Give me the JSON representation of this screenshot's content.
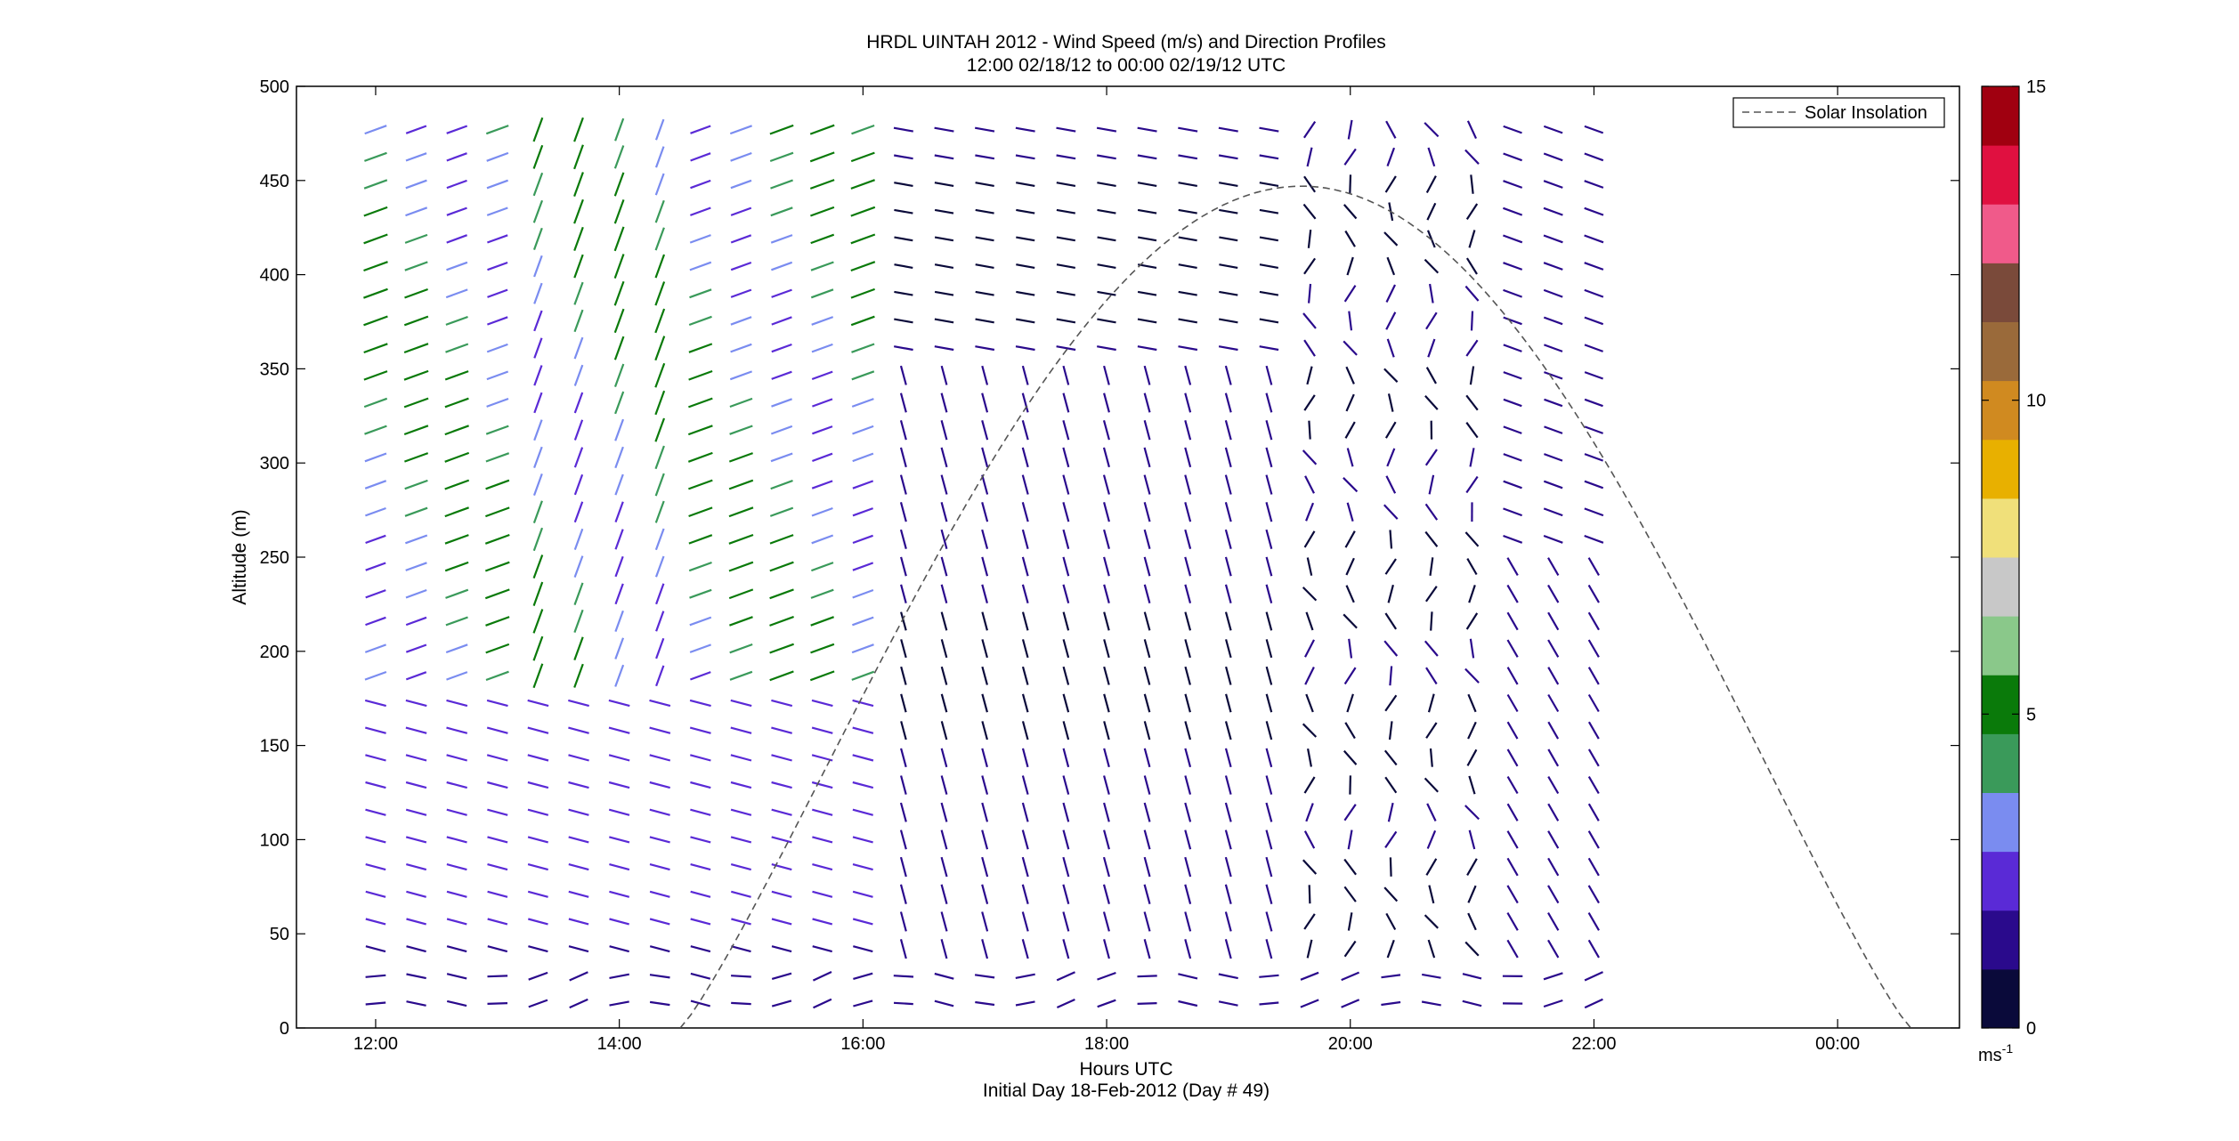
{
  "chart_data": {
    "type": "quiver",
    "title": "HRDL UINTAH 2012 - Wind Speed (m/s) and Direction Profiles",
    "subtitle": "12:00 02/18/12 to 00:00 02/19/12  UTC",
    "xlabel": "Hours UTC",
    "xlabel2": "Initial Day 18-Feb-2012 (Day # 49)",
    "ylabel": "Altitude (m)",
    "x_ticks": [
      "12:00",
      "14:00",
      "16:00",
      "18:00",
      "20:00",
      "22:00",
      "00:00"
    ],
    "x_tick_hours": [
      12,
      14,
      16,
      18,
      20,
      22,
      24
    ],
    "xlim_hours": [
      11.35,
      25.0
    ],
    "y_ticks": [
      "0",
      "50",
      "100",
      "150",
      "200",
      "250",
      "300",
      "350",
      "400",
      "450",
      "500"
    ],
    "ylim": [
      0,
      500
    ],
    "colorbar": {
      "ticks": [
        "0",
        "5",
        "10",
        "15"
      ],
      "range": [
        0,
        15
      ],
      "unit_label": "ms",
      "unit_exponent": "-1",
      "colors": [
        "#0a0a3a",
        "#2a0a8c",
        "#5a2ad6",
        "#7a8cf0",
        "#3a9a5a",
        "#0a7a0a",
        "#8ac88a",
        "#c8c8c8",
        "#f0e07a",
        "#e8b000",
        "#d08a20",
        "#9a6a3a",
        "#7a4a3a",
        "#f05a8a",
        "#e01040",
        "#a00010"
      ]
    },
    "legend": {
      "entry": "Solar Insolation",
      "position": "top-right",
      "line_style": "dashed"
    },
    "solar_insolation": {
      "start_hour": 14.5,
      "peak_hour": 19.6,
      "peak_altitude_equiv": 447,
      "end_hour": 24.6
    },
    "vectors_description_free": true,
    "profile_start_hour": 12.0,
    "profile_step_hours": 0.3333,
    "profile_count": 31,
    "altitude_start": 13,
    "altitude_step": 14.5,
    "altitude_count": 33
  }
}
